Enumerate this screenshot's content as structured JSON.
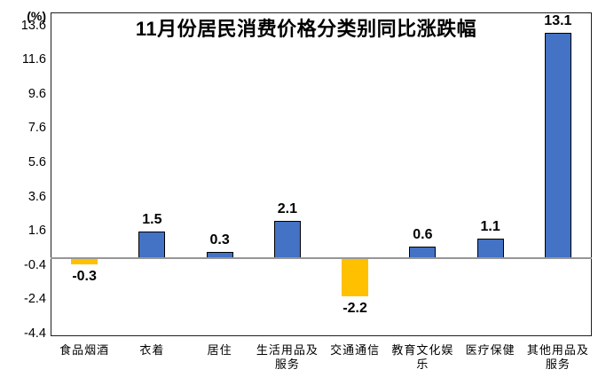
{
  "chart_data": {
    "type": "bar",
    "title": "11月份居民消费价格分类别同比涨跌幅",
    "unit_label": "(%)",
    "categories": [
      "食品烟酒",
      "衣着",
      "居住",
      "生活用品及服务",
      "交通通信",
      "教育文化娱乐",
      "医疗保健",
      "其他用品及服务"
    ],
    "category_display_lines": [
      [
        "食品烟酒"
      ],
      [
        "衣着"
      ],
      [
        "居住"
      ],
      [
        "生活用品及",
        "服务"
      ],
      [
        "交通通信"
      ],
      [
        "教育文化娱",
        "乐"
      ],
      [
        "医疗保健"
      ],
      [
        "其他用品及",
        "服务"
      ]
    ],
    "values": [
      -0.3,
      1.5,
      0.3,
      2.1,
      -2.2,
      0.6,
      1.1,
      13.1
    ],
    "value_labels": [
      "-0.3",
      "1.5",
      "0.3",
      "2.1",
      "-2.2",
      "0.6",
      "1.1",
      "13.1"
    ],
    "y_ticks": [
      13.6,
      11.6,
      9.6,
      7.6,
      5.6,
      3.6,
      1.6,
      -0.4,
      -2.4,
      -4.4
    ],
    "ylim": [
      -4.4,
      14.3
    ],
    "xlabel": "",
    "ylabel": "(%)",
    "grid": false,
    "legend": false,
    "colors": {
      "positive_bar": "#4472C4",
      "negative_bar": "#FFC000",
      "bar_outline": "#000000",
      "zero_line": "#969696",
      "plot_border": "#1f1f1f",
      "text": "#000000"
    }
  }
}
